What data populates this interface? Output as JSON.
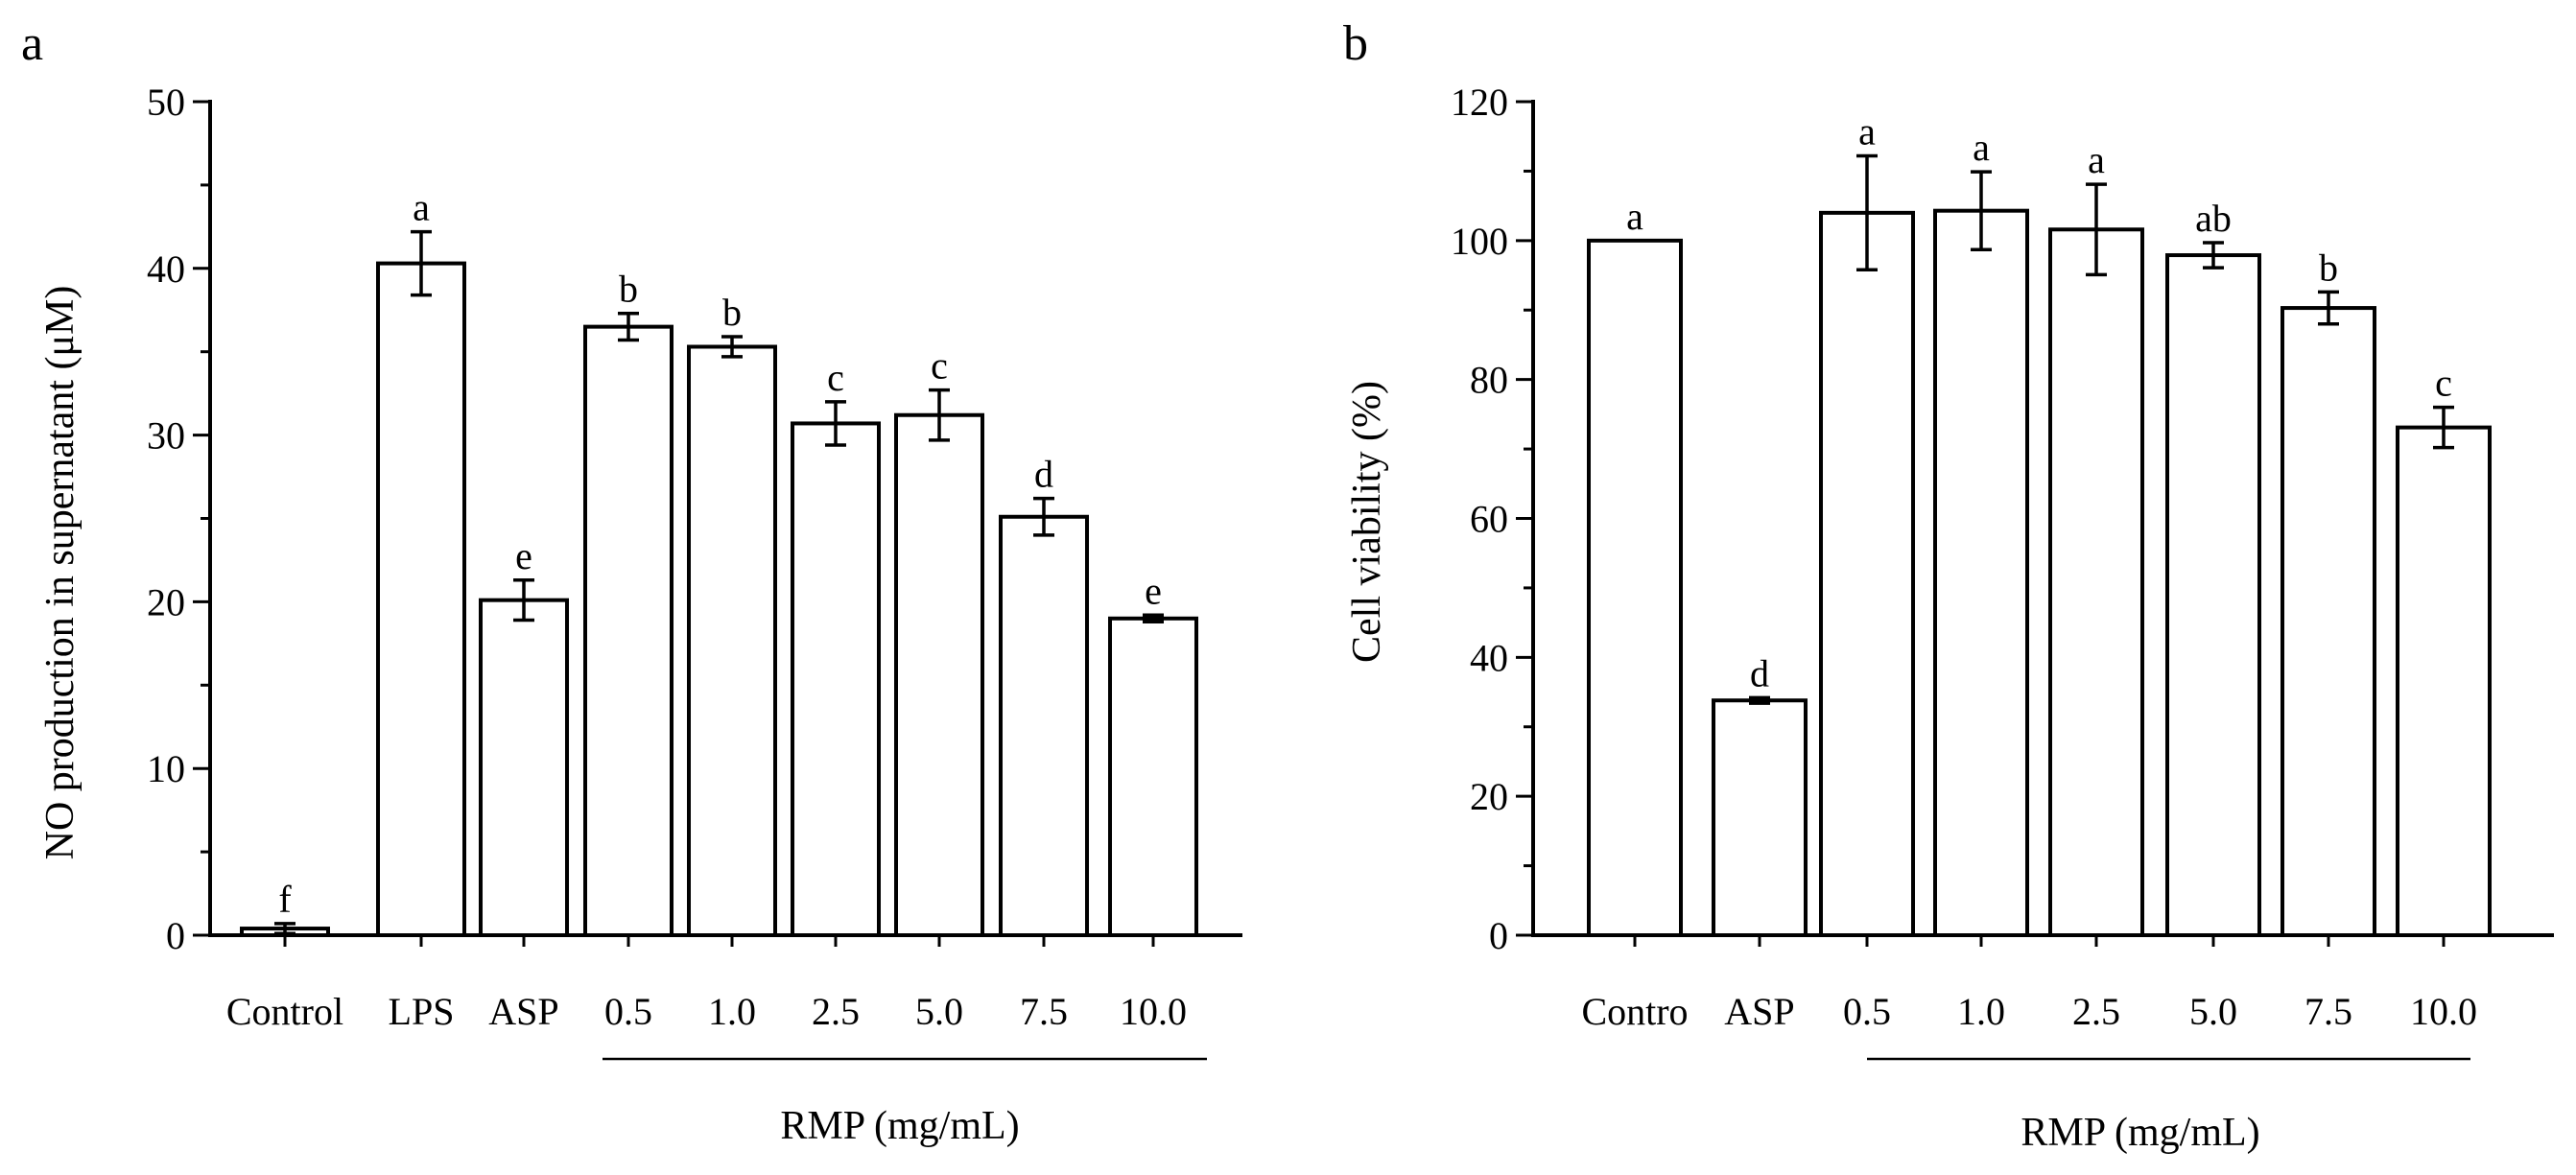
{
  "chart_data": [
    {
      "panel": "a",
      "type": "bar",
      "ylabel": "NO production in supernatant  (μM)",
      "ylim": [
        0,
        50
      ],
      "yticks": [
        0,
        10,
        20,
        30,
        40,
        50
      ],
      "ytick_labels": [
        "0",
        "10",
        "20",
        "30",
        "40",
        "50"
      ],
      "categories": [
        "Control",
        "LPS",
        "ASP",
        "0.5",
        "1.0",
        "2.5",
        "5.0",
        "7.5",
        "10.0"
      ],
      "values": [
        0.4,
        40.3,
        20.1,
        36.5,
        35.3,
        30.7,
        31.2,
        25.1,
        19.0
      ],
      "errors": [
        0.3,
        1.9,
        1.2,
        0.8,
        0.6,
        1.3,
        1.5,
        1.1,
        0.2
      ],
      "significance": [
        "f",
        "a",
        "e",
        "b",
        "b",
        "c",
        "c",
        "d",
        "e"
      ],
      "group_label": "RMP (mg/mL)",
      "group_start": 3
    },
    {
      "panel": "b",
      "type": "bar",
      "ylabel": "Cell viability (%)",
      "ylim": [
        0,
        120
      ],
      "yticks": [
        0,
        20,
        40,
        60,
        80,
        100,
        120
      ],
      "ytick_labels": [
        "0",
        "20",
        "40",
        "60",
        "80",
        "100",
        "120"
      ],
      "categories": [
        "Contro",
        "ASP",
        "0.5",
        "1.0",
        "2.5",
        "5.0",
        "7.5",
        "10.0"
      ],
      "values": [
        100,
        33.8,
        104.0,
        104.3,
        101.6,
        97.9,
        90.3,
        73.1
      ],
      "errors": [
        0,
        0.4,
        8.2,
        5.6,
        6.5,
        1.8,
        2.3,
        2.9
      ],
      "significance": [
        "a",
        "d",
        "a",
        "a",
        "a",
        "ab",
        "b",
        "c"
      ],
      "group_label": "RMP (mg/mL)",
      "group_start": 2
    }
  ]
}
